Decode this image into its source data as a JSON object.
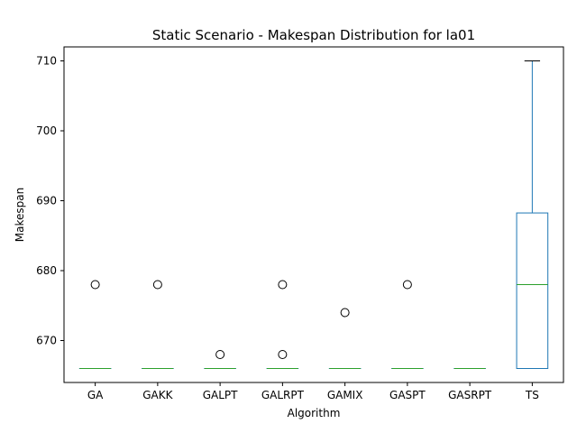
{
  "chart_data": {
    "type": "box",
    "title": "Static Scenario - Makespan Distribution for la01",
    "xlabel": "Algorithm",
    "ylabel": "Makespan",
    "ylim": [
      664,
      712
    ],
    "yticks": [
      670,
      680,
      690,
      700,
      710
    ],
    "grid": false,
    "categories": [
      "GA",
      "GAKK",
      "GALPT",
      "GALRPT",
      "GAMIX",
      "GASPT",
      "GASRPT",
      "TS"
    ],
    "boxes": [
      {
        "category": "GA",
        "whisker_low": 666,
        "q1": 666,
        "median": 666,
        "q3": 666,
        "whisker_high": 666,
        "outliers": [
          678
        ]
      },
      {
        "category": "GAKK",
        "whisker_low": 666,
        "q1": 666,
        "median": 666,
        "q3": 666,
        "whisker_high": 666,
        "outliers": [
          678
        ]
      },
      {
        "category": "GALPT",
        "whisker_low": 666,
        "q1": 666,
        "median": 666,
        "q3": 666,
        "whisker_high": 666,
        "outliers": [
          668
        ]
      },
      {
        "category": "GALRPT",
        "whisker_low": 666,
        "q1": 666,
        "median": 666,
        "q3": 666,
        "whisker_high": 666,
        "outliers": [
          678,
          668
        ]
      },
      {
        "category": "GAMIX",
        "whisker_low": 666,
        "q1": 666,
        "median": 666,
        "q3": 666,
        "whisker_high": 666,
        "outliers": [
          674
        ]
      },
      {
        "category": "GASPT",
        "whisker_low": 666,
        "q1": 666,
        "median": 666,
        "q3": 666,
        "whisker_high": 666,
        "outliers": [
          678
        ]
      },
      {
        "category": "GASRPT",
        "whisker_low": 666,
        "q1": 666,
        "median": 666,
        "q3": 666,
        "whisker_high": 666,
        "outliers": []
      },
      {
        "category": "TS",
        "whisker_low": 666,
        "q1": 666,
        "median": 678,
        "q3": 688.25,
        "whisker_high": 710,
        "outliers": []
      }
    ],
    "colors": {
      "box": "#1f77b4",
      "median": "#2ca02c",
      "cap": "#000000",
      "outlier": "#000000"
    }
  }
}
